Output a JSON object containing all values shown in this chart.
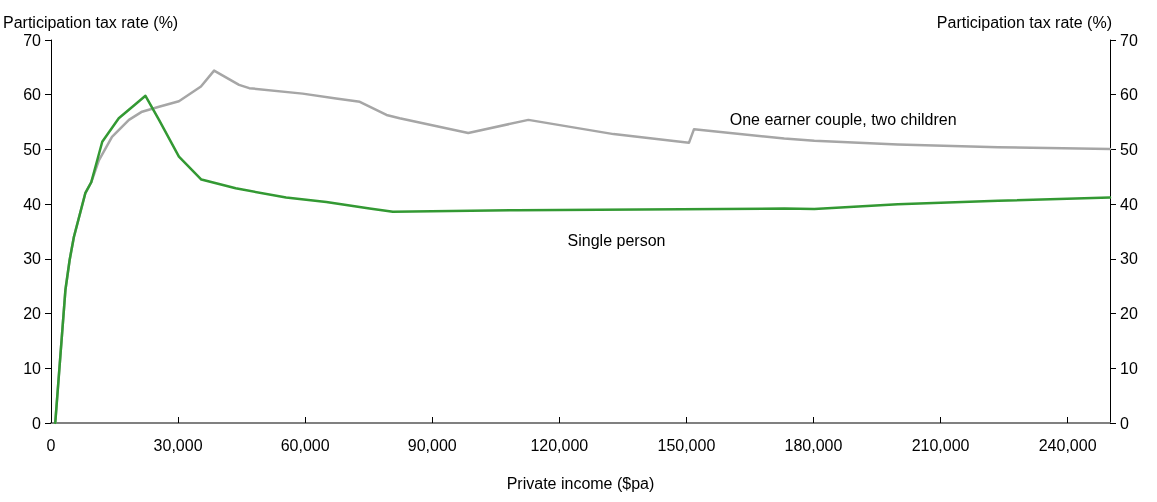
{
  "chart_data": {
    "type": "line",
    "xlabel": "Private income ($pa)",
    "ylabel": "Participation tax rate (%)",
    "y2label": "Participation tax rate (%)",
    "xlim": [
      0,
      250000
    ],
    "xticks": [
      0,
      {
        "value": 30000,
        "label": "30,000"
      },
      {
        "value": 60000,
        "label": "60,000"
      },
      {
        "value": 90000,
        "label": "90,000"
      },
      {
        "value": 120000,
        "label": "120,000"
      },
      {
        "value": 150000,
        "label": "150,000"
      },
      {
        "value": 180000,
        "label": "180,000"
      },
      {
        "value": 210000,
        "label": "210,000"
      },
      {
        "value": 240000,
        "label": "240,000"
      }
    ],
    "ylim": [
      0,
      70
    ],
    "yticks": [
      0,
      10,
      20,
      30,
      40,
      50,
      60,
      70
    ],
    "y2lim": [
      0,
      70
    ],
    "y2ticks": [
      0,
      10,
      20,
      30,
      40,
      50,
      60,
      70
    ],
    "grid": false,
    "legend": false,
    "marker": "none",
    "line_style": "solid",
    "series": [
      {
        "name": "One earner couple, two children",
        "color": "#a6a6a6",
        "x": [
          1000,
          3400,
          4400,
          5400,
          8100,
          9500,
          11300,
          14400,
          18400,
          21500,
          25500,
          30200,
          35400,
          38500,
          44400,
          46800,
          59400,
          67300,
          72900,
          79200,
          82300,
          98500,
          112700,
          132800,
          150600,
          151800,
          173100,
          180200,
          199900,
          223600,
          250000
        ],
        "values": [
          0,
          24.3,
          29.8,
          34,
          42,
          44,
          48,
          52.3,
          55.4,
          56.9,
          57.8,
          58.8,
          61.5,
          64.4,
          61.8,
          61.2,
          60.2,
          59.3,
          58.7,
          56.3,
          55.7,
          53.0,
          55.4,
          52.8,
          51.2,
          53.7,
          52.0,
          51.6,
          50.9,
          50.4,
          50.1
        ]
      },
      {
        "name": "Single person",
        "color": "#339933",
        "x": [
          1000,
          3400,
          4400,
          5400,
          8100,
          9500,
          12100,
          16000,
          20000,
          22300,
          25500,
          30200,
          35500,
          43600,
          55500,
          65000,
          75200,
          80700,
          110000,
          173100,
          180200,
          199900,
          223600,
          250000
        ],
        "values": [
          0,
          24.3,
          29.8,
          34,
          42,
          44,
          51.4,
          55.7,
          58.3,
          59.8,
          55.4,
          48.7,
          44.5,
          42.9,
          41.2,
          40.4,
          39.2,
          38.6,
          38.9,
          39.2,
          39.1,
          40.0,
          40.6,
          41.2
        ]
      }
    ]
  }
}
